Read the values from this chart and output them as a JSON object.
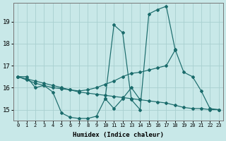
{
  "xlabel": "Humidex (Indice chaleur)",
  "bg_color": "#c8e8e8",
  "grid_color": "#a8d0d0",
  "line_color": "#1a6b6b",
  "x_values": [
    0,
    1,
    2,
    3,
    4,
    5,
    6,
    7,
    8,
    9,
    10,
    11,
    12,
    13,
    14,
    15,
    16,
    17,
    18,
    19,
    20,
    21,
    22,
    23
  ],
  "series_main": [
    16.5,
    16.5,
    16.0,
    16.1,
    15.8,
    14.85,
    14.65,
    14.6,
    14.6,
    14.7,
    15.5,
    18.85,
    18.5,
    15.45,
    15.0,
    19.35,
    19.55,
    19.7,
    17.75,
    16.7,
    16.5,
    15.85,
    15.05,
    15.0
  ],
  "series_diag": [
    16.5,
    16.35,
    16.2,
    16.1,
    16.0,
    15.95,
    15.9,
    15.85,
    15.9,
    16.0,
    16.15,
    16.3,
    16.5,
    16.65,
    16.7,
    16.8,
    16.9,
    17.0,
    17.7,
    null,
    null,
    null,
    null,
    null
  ],
  "series_low": [
    16.5,
    16.4,
    16.3,
    16.2,
    16.1,
    16.0,
    15.9,
    15.8,
    15.75,
    15.7,
    15.65,
    15.6,
    15.55,
    15.5,
    15.45,
    15.4,
    15.35,
    15.3,
    15.2,
    15.1,
    15.05,
    15.05,
    15.0,
    15.0
  ],
  "series_small": [
    null,
    null,
    null,
    null,
    null,
    null,
    null,
    null,
    null,
    null,
    15.5,
    15.05,
    15.5,
    16.0,
    15.45,
    null,
    null,
    null,
    null,
    null,
    null,
    null,
    null,
    null
  ],
  "ylim": [
    14.5,
    19.85
  ],
  "xlim": [
    -0.5,
    23.5
  ],
  "ytick_values": [
    15,
    16,
    17,
    18,
    19
  ],
  "figsize": [
    3.2,
    2.0
  ],
  "dpi": 100
}
